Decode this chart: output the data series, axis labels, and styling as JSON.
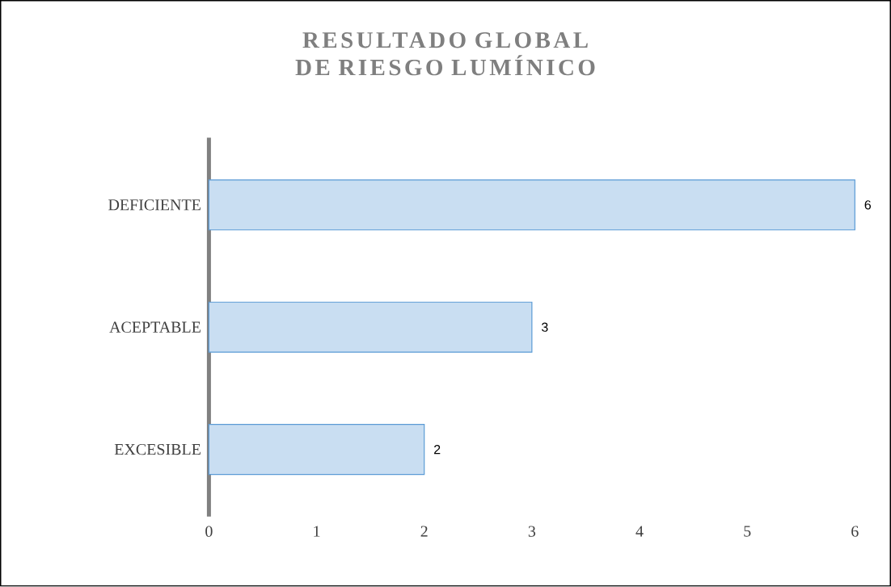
{
  "chart_data": {
    "type": "bar",
    "orientation": "horizontal",
    "title": "RESULTADO GLOBAL DE RIESGO LUMÍNICO",
    "categories": [
      "DEFICIENTE",
      "ACEPTABLE",
      "EXCESIBLE"
    ],
    "values": [
      6,
      3,
      2
    ],
    "color": "#c9def2",
    "xlim": [
      0,
      6
    ],
    "xticks": [
      0,
      1,
      2,
      3,
      4,
      5,
      6
    ],
    "data_labels": true
  }
}
